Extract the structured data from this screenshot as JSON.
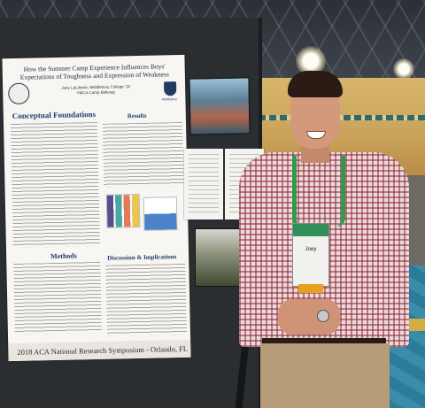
{
  "poster": {
    "title": "How the Summer Camp Experience Influences Boys' Expectations of Toughness and Expression of Weakness",
    "author_line1": "Joey LaLiberte, Middlebury College '18",
    "author_line2": "YMCA Camp Belknap",
    "institution_label": "Middlebury",
    "section_conceptual": "Conceptual Foundations",
    "section_results": "Results",
    "section_methods": "Methods",
    "section_discussion": "Discussion & Implications",
    "footer": "2018 ACA National Research Symposium - Orlando, FL"
  },
  "badge": {
    "name": "Joey"
  },
  "colors": {
    "poster_heading": "#1f3a68",
    "lanyard": "#2f9a4a",
    "carpet": "#2d7a9a"
  }
}
